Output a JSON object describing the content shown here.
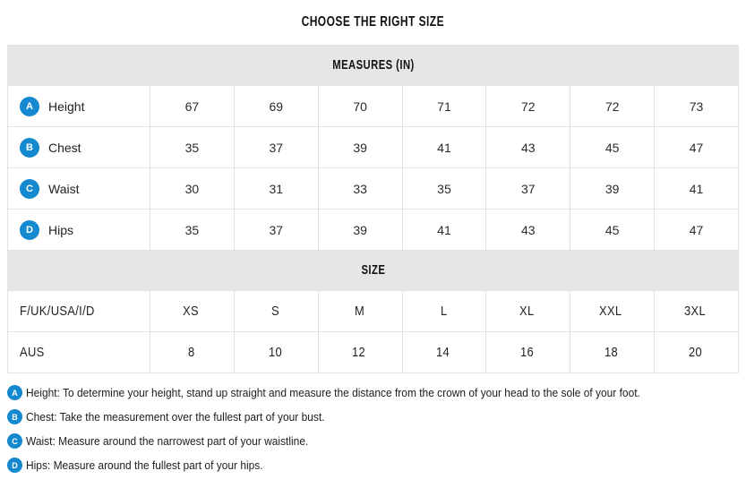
{
  "page": {
    "title": "CHOOSE THE RIGHT SIZE"
  },
  "colors": {
    "accent_blue": "#1589cf",
    "header_band_bg": "#e6e6e6",
    "table_border": "#e2e2e2"
  },
  "measures_table": {
    "header": "MEASURES (IN)",
    "rows": [
      {
        "badge": "A",
        "label": "Height",
        "values": [
          "67",
          "69",
          "70",
          "71",
          "72",
          "72",
          "73"
        ]
      },
      {
        "badge": "B",
        "label": "Chest",
        "values": [
          "35",
          "37",
          "39",
          "41",
          "43",
          "45",
          "47"
        ]
      },
      {
        "badge": "C",
        "label": "Waist",
        "values": [
          "30",
          "31",
          "33",
          "35",
          "37",
          "39",
          "41"
        ]
      },
      {
        "badge": "D",
        "label": "Hips",
        "values": [
          "35",
          "37",
          "39",
          "41",
          "43",
          "45",
          "47"
        ]
      }
    ]
  },
  "size_table": {
    "header": "SIZE",
    "rows": [
      {
        "label": "F/UK/USA/I/D",
        "values": [
          "XS",
          "S",
          "M",
          "L",
          "XL",
          "XXL",
          "3XL"
        ]
      },
      {
        "label": "AUS",
        "values": [
          "8",
          "10",
          "12",
          "14",
          "16",
          "18",
          "20"
        ]
      }
    ]
  },
  "footnotes": [
    {
      "badge": "A",
      "text": "Height: To determine your height, stand up straight and measure the distance from the crown of your head to the sole of your foot."
    },
    {
      "badge": "B",
      "text": "Chest: Take the measurement over the fullest part of your bust."
    },
    {
      "badge": "C",
      "text": "Waist: Measure around the narrowest part of your waistline."
    },
    {
      "badge": "D",
      "text": "Hips: Measure around the fullest part of your hips."
    }
  ]
}
